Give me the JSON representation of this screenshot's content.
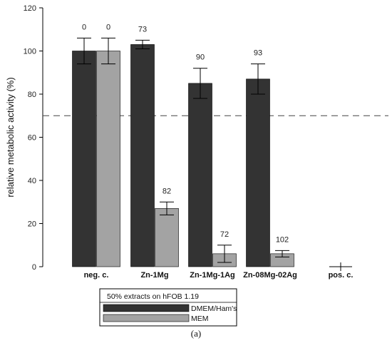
{
  "chart_data": {
    "type": "bar",
    "ylabel": "relative metabolic activity (%)",
    "ylim": [
      0,
      120
    ],
    "yticks": [
      0,
      20,
      40,
      60,
      80,
      100,
      120
    ],
    "grid": false,
    "threshold_line": 70,
    "categories": [
      "neg. c.",
      "Zn-1Mg",
      "Zn-1Mg-1Ag",
      "Zn-08Mg-02Ag",
      "pos. c."
    ],
    "series": [
      {
        "name": "DMEM/Ham's",
        "color": "#333333",
        "values": [
          100,
          103,
          85,
          87,
          0
        ],
        "errors": [
          6,
          2,
          7,
          7,
          0
        ],
        "annotations": [
          "0",
          "73",
          "90",
          "93",
          ""
        ]
      },
      {
        "name": "MEM",
        "color": "#a3a3a3",
        "values": [
          100,
          27,
          6,
          6,
          0
        ],
        "errors": [
          6,
          3,
          4,
          1.5,
          0
        ],
        "annotations": [
          "0",
          "82",
          "72",
          "102",
          ""
        ]
      }
    ],
    "legend": {
      "title": "50% extracts on hFOB 1.19",
      "placement": "bottom-center"
    }
  },
  "caption": "(a)"
}
